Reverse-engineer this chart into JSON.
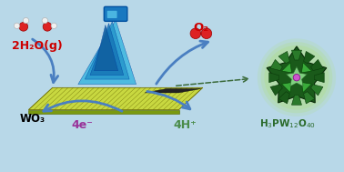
{
  "bg_color": "#b8d8e8",
  "water_label": "2H₂O(g)",
  "water_color": "#cc0000",
  "o2_label": "O₂",
  "o2_color": "#cc0000",
  "wo3_label": "WO₃",
  "wo3_color": "#000000",
  "electrons_label": "4e⁻",
  "electrons_color": "#993399",
  "protons_label": "4H⁺",
  "protons_color": "#4a8c4a",
  "hpa_label_r": "H$_3$PW$_{12}$O$_{40}$",
  "hpa_color": "#2a6a2a",
  "arrow_color": "#4a7fc1",
  "dashed_arrow_color": "#3a6a3a",
  "plate_color_top": "#c8d840",
  "plate_color_side": "#7a9a10",
  "hpa_bg": "#b0e080",
  "hpa_dark": "#1a5a1a",
  "light_blue": "#40b8e0",
  "light_dark_blue": "#1060a0",
  "light_mid_blue": "#2080c0"
}
